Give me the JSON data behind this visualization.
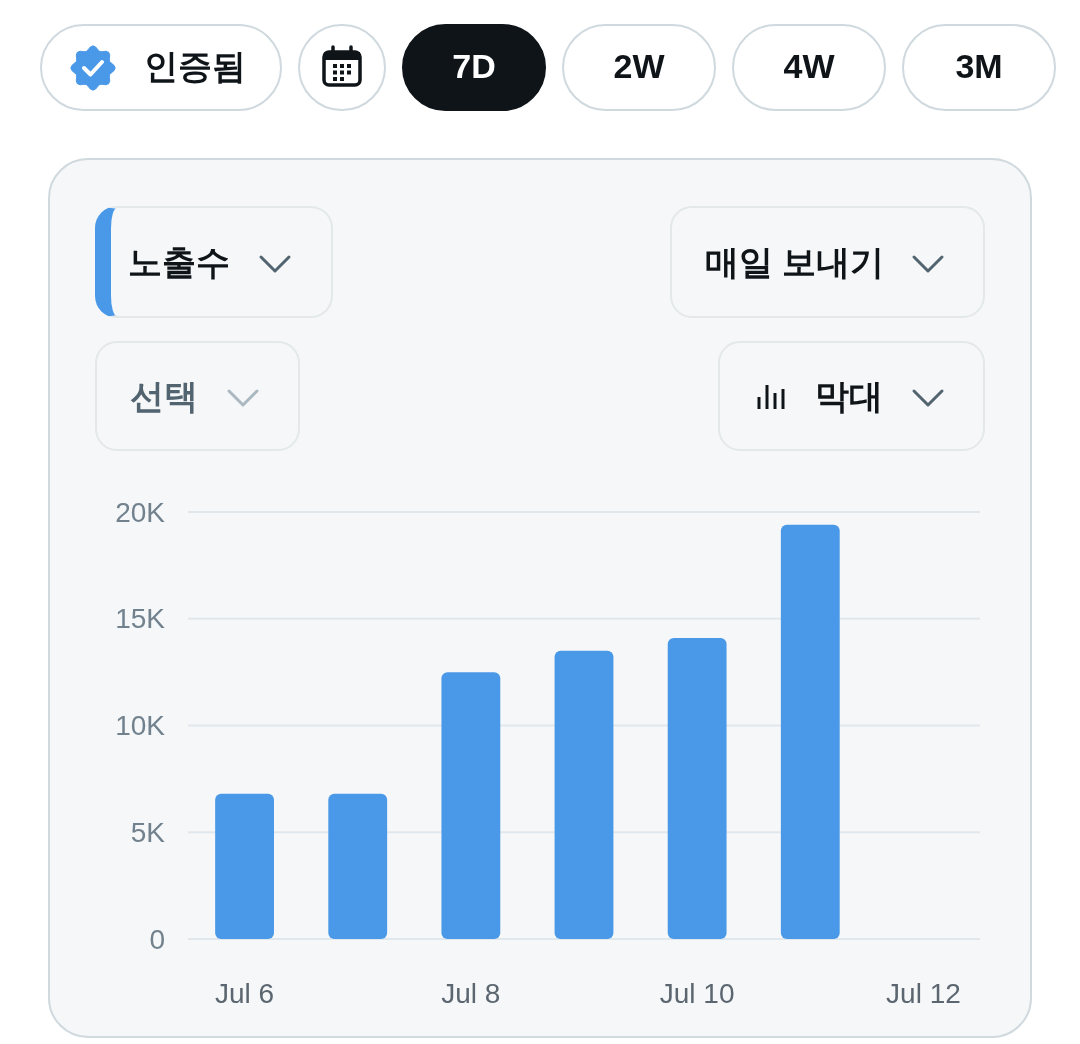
{
  "chart_data": {
    "type": "bar",
    "title": "노출수",
    "categories": [
      "Jul 6",
      null,
      "Jul 8",
      null,
      "Jul 10",
      null,
      "Jul 12"
    ],
    "values": [
      6800,
      6800,
      12500,
      13500,
      14100,
      19400,
      null
    ],
    "color": "#4a99e9",
    "ylim": [
      0,
      20000
    ],
    "yticks": [
      0,
      {
        "value": 5000,
        "label": "5K"
      },
      {
        "value": 10000,
        "label": "10K"
      },
      {
        "value": 15000,
        "label": "15K"
      },
      {
        "value": 20000,
        "label": "20K"
      }
    ],
    "grid": "y",
    "annotations": [
      "인증됨",
      "7D",
      "2W",
      "4W",
      "3M",
      "매일 보내기",
      "선택",
      "막대"
    ]
  }
}
